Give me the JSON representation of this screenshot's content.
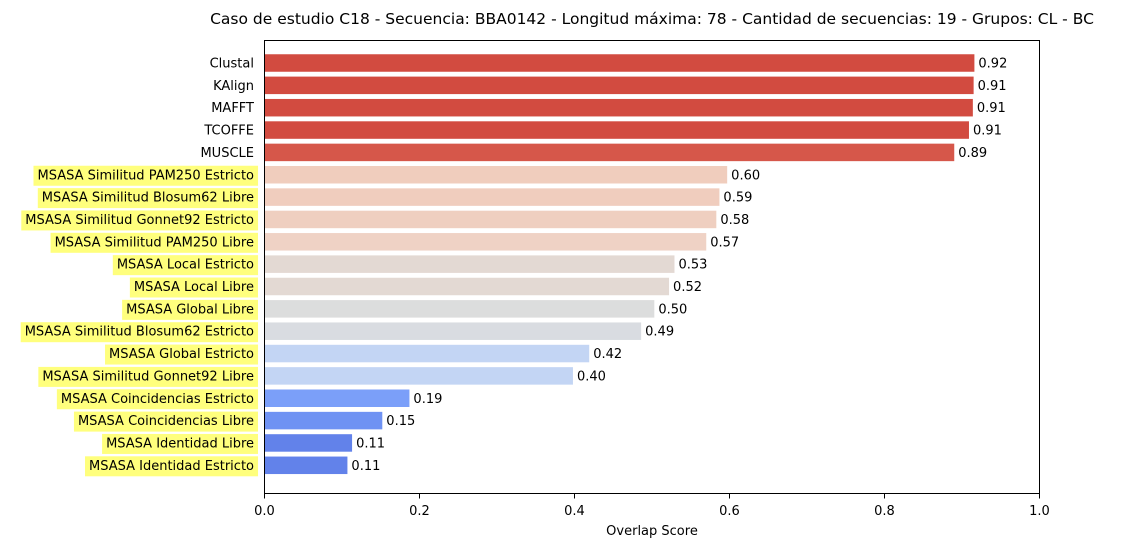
{
  "chart_data": {
    "type": "bar",
    "orientation": "horizontal",
    "title": "Caso de estudio C18 - Secuencia: BBA0142 - Longitud máxima: 78 - Cantidad de secuencias: 19 - Grupos: CL - BC",
    "xlabel": "Overlap Score",
    "ylabel": "",
    "xlim": [
      0,
      1.0
    ],
    "xticks": [
      "0.0",
      "0.2",
      "0.4",
      "0.6",
      "0.8",
      "1.0"
    ],
    "grid": false,
    "highlight_color": "#ffff66",
    "bars": [
      {
        "label": "Clustal",
        "value": 0.916,
        "value_label": "0.92",
        "color": "#d24b40",
        "highlight": false
      },
      {
        "label": "KAlign",
        "value": 0.915,
        "value_label": "0.91",
        "color": "#d24b40",
        "highlight": false
      },
      {
        "label": "MAFFT",
        "value": 0.914,
        "value_label": "0.91",
        "color": "#d24b40",
        "highlight": false
      },
      {
        "label": "TCOFFE",
        "value": 0.909,
        "value_label": "0.91",
        "color": "#d24b40",
        "highlight": false
      },
      {
        "label": "MUSCLE",
        "value": 0.89,
        "value_label": "0.89",
        "color": "#d6574a",
        "highlight": false
      },
      {
        "label": "MSASA Similitud PAM250 Estricto",
        "value": 0.597,
        "value_label": "0.60",
        "color": "#f0cdbd",
        "highlight": true
      },
      {
        "label": "MSASA Similitud Blosum62 Libre",
        "value": 0.587,
        "value_label": "0.59",
        "color": "#f0cdbe",
        "highlight": true
      },
      {
        "label": "MSASA Similitud Gonnet92 Estricto",
        "value": 0.583,
        "value_label": "0.58",
        "color": "#efcfc0",
        "highlight": true
      },
      {
        "label": "MSASA Similitud PAM250 Libre",
        "value": 0.57,
        "value_label": "0.57",
        "color": "#efd2c5",
        "highlight": true
      },
      {
        "label": "MSASA Local Estricto",
        "value": 0.529,
        "value_label": "0.53",
        "color": "#e3d9d3",
        "highlight": true
      },
      {
        "label": "MSASA Local Libre",
        "value": 0.522,
        "value_label": "0.52",
        "color": "#e3d9d3",
        "highlight": true
      },
      {
        "label": "MSASA Global Libre",
        "value": 0.503,
        "value_label": "0.50",
        "color": "#dcdddd",
        "highlight": true
      },
      {
        "label": "MSASA Similitud Blosum62 Estricto",
        "value": 0.486,
        "value_label": "0.49",
        "color": "#d9dce1",
        "highlight": true
      },
      {
        "label": "MSASA Global Estricto",
        "value": 0.419,
        "value_label": "0.42",
        "color": "#c3d5f4",
        "highlight": true
      },
      {
        "label": "MSASA Similitud Gonnet92 Libre",
        "value": 0.398,
        "value_label": "0.40",
        "color": "#c3d5f4",
        "highlight": true
      },
      {
        "label": "MSASA Coincidencias Estricto",
        "value": 0.187,
        "value_label": "0.19",
        "color": "#7b9ff9",
        "highlight": true
      },
      {
        "label": "MSASA Coincidencias Libre",
        "value": 0.152,
        "value_label": "0.15",
        "color": "#6f92f3",
        "highlight": true
      },
      {
        "label": "MSASA Identidad Libre",
        "value": 0.113,
        "value_label": "0.11",
        "color": "#6282ea",
        "highlight": true
      },
      {
        "label": "MSASA Identidad Estricto",
        "value": 0.107,
        "value_label": "0.11",
        "color": "#6282ea",
        "highlight": true
      }
    ]
  }
}
